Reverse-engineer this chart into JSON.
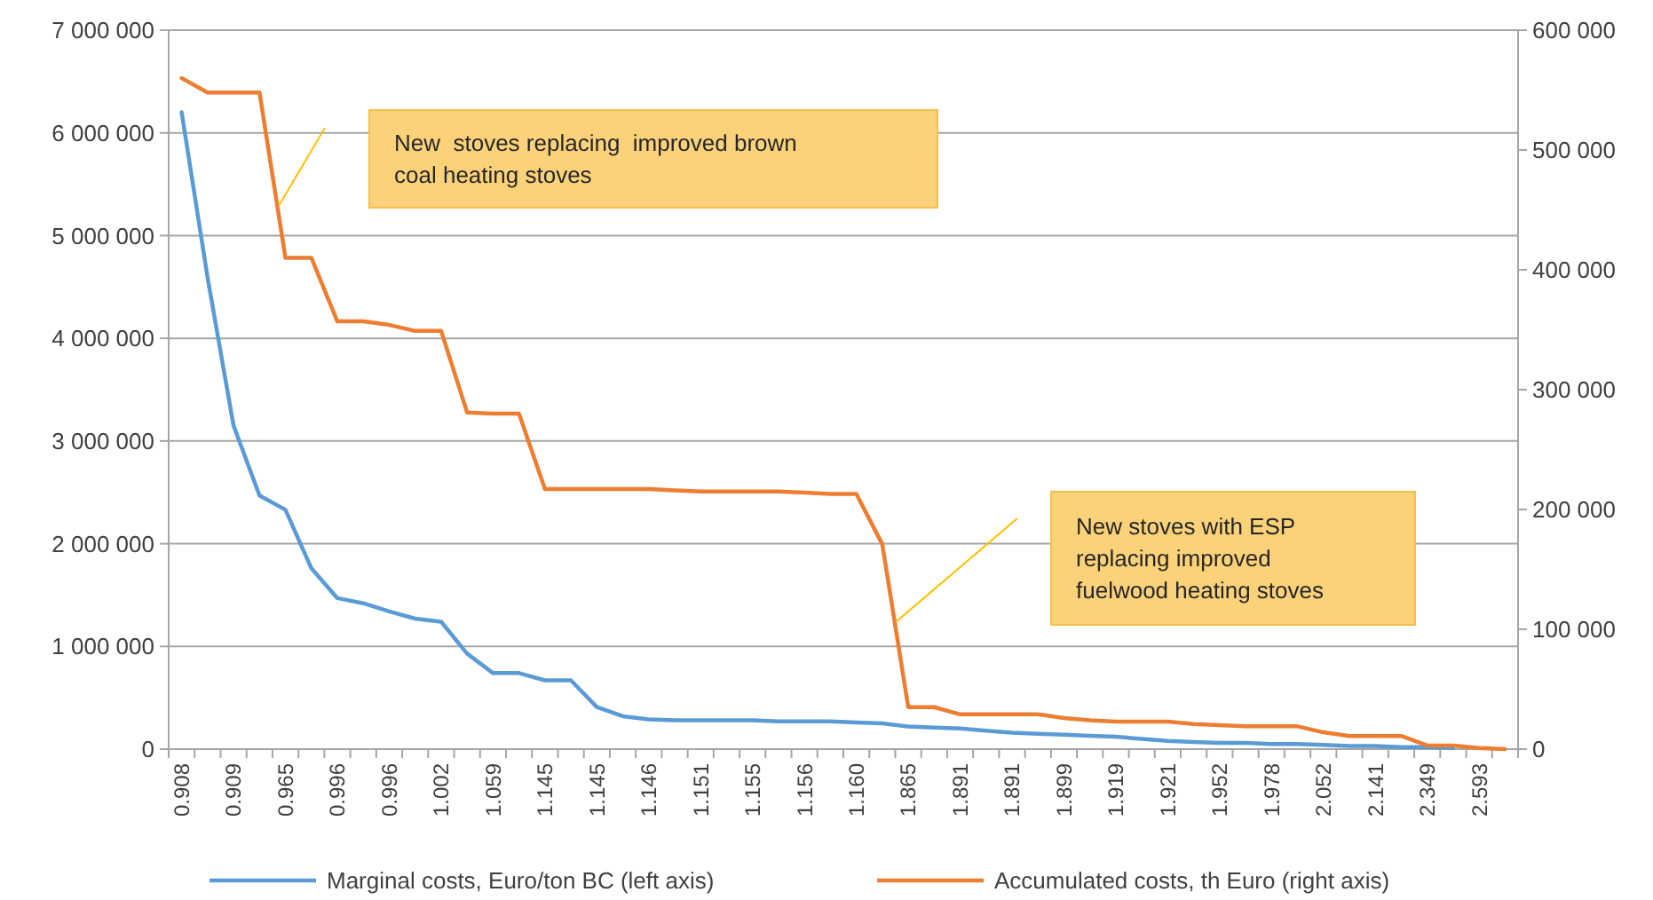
{
  "chart_data": {
    "type": "line",
    "categories": [
      "0.908",
      null,
      "0.909",
      null,
      "0.965",
      null,
      "0.996",
      null,
      "0.996",
      null,
      "1.002",
      null,
      "1.059",
      null,
      "1.145",
      null,
      "1.145",
      null,
      "1.146",
      null,
      "1.151",
      null,
      "1.155",
      null,
      "1.156",
      null,
      "1.160",
      null,
      "1.865",
      null,
      "1.891",
      null,
      "1.891",
      null,
      "1.899",
      null,
      "1.919",
      null,
      "1.921",
      null,
      "1.952",
      null,
      "1.978",
      null,
      "2.052",
      null,
      "2.141",
      null,
      "2.349",
      null,
      "2.593",
      null
    ],
    "series": [
      {
        "name": "Marginal costs, Euro/ton BC (left axis)",
        "color": "#5b9bd5",
        "values": [
          6200000,
          4590000,
          3150000,
          2470000,
          2330000,
          1760000,
          1470000,
          1420000,
          1340000,
          1270000,
          1240000,
          930000,
          740000,
          740000,
          670000,
          670000,
          410000,
          320000,
          290000,
          280000,
          280000,
          280000,
          280000,
          270000,
          270000,
          270000,
          260000,
          250000,
          220000,
          210000,
          200000,
          180000,
          160000,
          150000,
          140000,
          130000,
          120000,
          100000,
          80000,
          70000,
          60000,
          60000,
          50000,
          50000,
          40000,
          30000,
          30000,
          20000,
          20000,
          10000,
          null,
          null
        ]
      },
      {
        "name": "Accumulated costs, th Euro (right axis)",
        "color": "#ed7d31",
        "axis": "y2",
        "values": [
          560000,
          548000,
          548000,
          548000,
          410000,
          410000,
          357000,
          357000,
          354000,
          349000,
          349000,
          281000,
          280000,
          280000,
          217000,
          217000,
          217000,
          217000,
          217000,
          216000,
          215000,
          215000,
          215000,
          215000,
          214000,
          213000,
          213000,
          171000,
          35000,
          35000,
          29000,
          29000,
          29000,
          29000,
          26000,
          24000,
          23000,
          23000,
          23000,
          21000,
          20000,
          19000,
          19000,
          19000,
          14000,
          11000,
          11000,
          11000,
          3000,
          3000,
          1000,
          0
        ]
      }
    ],
    "ylim": [
      0,
      7000000
    ],
    "yticks": [
      0,
      {
        "value": 1000000,
        "label": "1 000 000"
      },
      {
        "value": 2000000,
        "label": "2 000 000"
      },
      {
        "value": 3000000,
        "label": "3 000 000"
      },
      {
        "value": 4000000,
        "label": "4 000 000"
      },
      {
        "value": 5000000,
        "label": "5 000 000"
      },
      {
        "value": 6000000,
        "label": "6 000 000"
      },
      {
        "value": 7000000,
        "label": "7 000 000"
      }
    ],
    "y2lim": [
      0,
      600000
    ],
    "y2ticks": [
      0,
      {
        "value": 100000,
        "label": "100 000"
      },
      {
        "value": 200000,
        "label": "200 000"
      },
      {
        "value": 300000,
        "label": "300 000"
      },
      {
        "value": 400000,
        "label": "400 000"
      },
      {
        "value": 500000,
        "label": "500 000"
      },
      {
        "value": 600000,
        "label": "600 000"
      }
    ],
    "annotations": [
      "New  stoves replacing  improved brown coal heating stoves",
      "New stoves with ESP replacing improved fuelwood heating stoves"
    ],
    "grid": "y",
    "legend": "bottom",
    "marker": "none",
    "line_style": "solid"
  }
}
